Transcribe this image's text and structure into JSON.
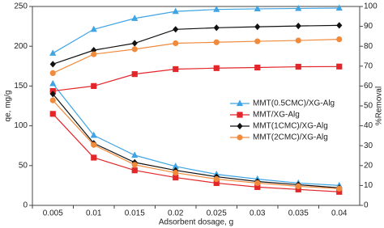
{
  "chart_data": {
    "type": "line",
    "x_label": "Adsorbent dosage, g",
    "y_label": "qe, mg/g",
    "y2_label": "%Removal",
    "categories": [
      "0.005",
      "0.01",
      "0.015",
      "0.02",
      "0.025",
      "0.03",
      "0.035",
      "0.04"
    ],
    "ylim": [
      0,
      250
    ],
    "yticks": [
      0,
      50,
      100,
      150,
      200,
      250
    ],
    "y2lim": [
      0,
      100
    ],
    "y2ticks": [
      0,
      10,
      20,
      30,
      40,
      50,
      60,
      70,
      80,
      90,
      100
    ],
    "legend": "right",
    "series": [
      {
        "name": "MMT(0.5CMC)/XG-Alg",
        "color": "#3fa4e4",
        "marker": "triangle",
        "values": [
          153,
          88,
          63,
          49,
          39,
          33,
          28,
          25
        ],
        "y2_values": [
          76.5,
          88.5,
          94,
          97.5,
          98.5,
          98.8,
          99,
          99.2
        ]
      },
      {
        "name": "MMT/XG-Alg",
        "color": "#e3262a",
        "marker": "square",
        "values": [
          115,
          60,
          44,
          35,
          28,
          23,
          20,
          17
        ],
        "y2_values": [
          57.5,
          60,
          66,
          68.5,
          69,
          69.3,
          69.7,
          69.8
        ]
      },
      {
        "name": "MMT(1CMC)/XG-Alg",
        "color": "#111111",
        "marker": "diamond",
        "values": [
          140,
          78,
          54,
          44,
          36,
          30,
          26,
          22
        ],
        "y2_values": [
          71,
          78,
          81.5,
          88.5,
          89.3,
          89.8,
          90.2,
          90.5
        ]
      },
      {
        "name": "MMT(2CMC)/XG-Alg",
        "color": "#f08a3c",
        "marker": "circle",
        "values": [
          132,
          76,
          51,
          41,
          33,
          28,
          24,
          21
        ],
        "y2_values": [
          66.5,
          76,
          78.5,
          81.5,
          82,
          82.5,
          82.9,
          83.5
        ]
      }
    ]
  }
}
